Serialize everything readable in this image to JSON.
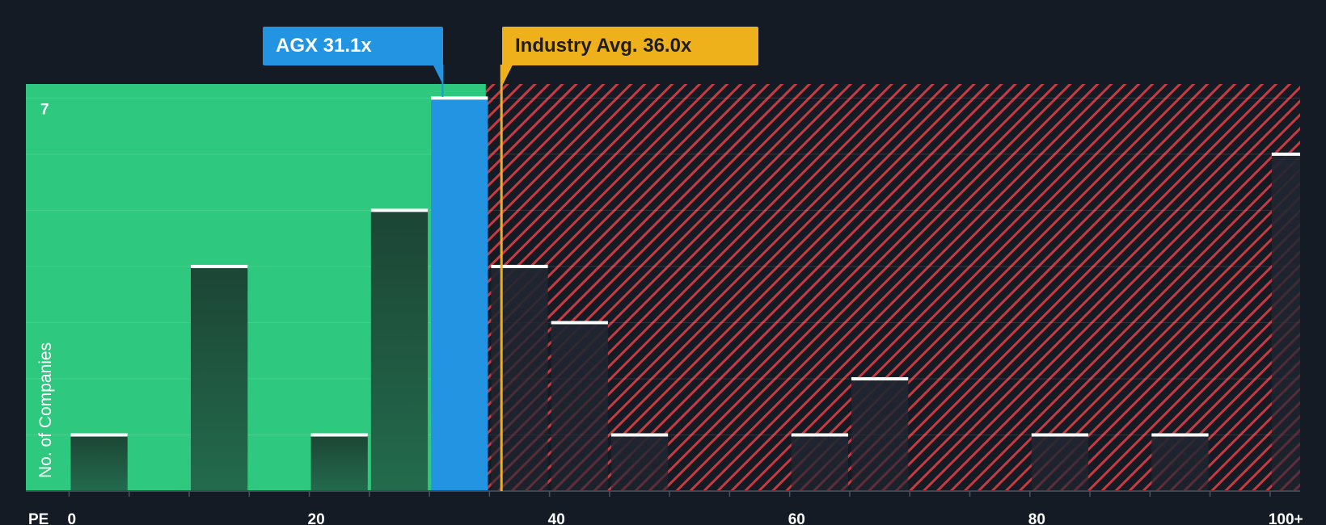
{
  "chart_data": {
    "type": "histogram",
    "xlabel": "PE",
    "ylabel": "No. of Companies",
    "x_tick_labels": [
      {
        "value": 0,
        "label": "0"
      },
      {
        "value": 20,
        "label": "20"
      },
      {
        "value": 40,
        "label": "40"
      },
      {
        "value": 60,
        "label": "60"
      },
      {
        "value": 80,
        "label": "80"
      },
      {
        "value": 100,
        "label": "100+"
      }
    ],
    "y_tick_labels": [
      {
        "value": 7,
        "label": "7"
      }
    ],
    "xlim": [
      -3.6,
      102.5
    ],
    "ylim": [
      0,
      7.25
    ],
    "bin_width": 5,
    "bins": [
      {
        "start": 0,
        "count": 1
      },
      {
        "start": 5,
        "count": 0
      },
      {
        "start": 10,
        "count": 4
      },
      {
        "start": 15,
        "count": 0
      },
      {
        "start": 20,
        "count": 1
      },
      {
        "start": 25,
        "count": 5
      },
      {
        "start": 30,
        "count": 7,
        "highlight": true
      },
      {
        "start": 35,
        "count": 4
      },
      {
        "start": 40,
        "count": 3
      },
      {
        "start": 45,
        "count": 1
      },
      {
        "start": 50,
        "count": 0
      },
      {
        "start": 55,
        "count": 0
      },
      {
        "start": 60,
        "count": 1
      },
      {
        "start": 65,
        "count": 2
      },
      {
        "start": 70,
        "count": 0
      },
      {
        "start": 75,
        "count": 0
      },
      {
        "start": 80,
        "count": 1
      },
      {
        "start": 85,
        "count": 0
      },
      {
        "start": 90,
        "count": 1
      },
      {
        "start": 95,
        "count": 0
      },
      {
        "start": 100,
        "count": 6
      }
    ],
    "company": {
      "name": "AGX",
      "value": 31.1,
      "label": "AGX 31.1x"
    },
    "industry_avg": {
      "value": 36.0,
      "label": "Industry Avg. 36.0x"
    },
    "threshold": 34.7
  },
  "colors": {
    "background": "#151b24",
    "undervalued": "#2ec97e",
    "overvalued_stripe": "#c73a40",
    "company": "#2394e1",
    "industry": "#eeb11b",
    "bar_dark": "#1f4a3a",
    "bar_shadow": "#1b1f29",
    "bar_top": "#ffffff"
  }
}
